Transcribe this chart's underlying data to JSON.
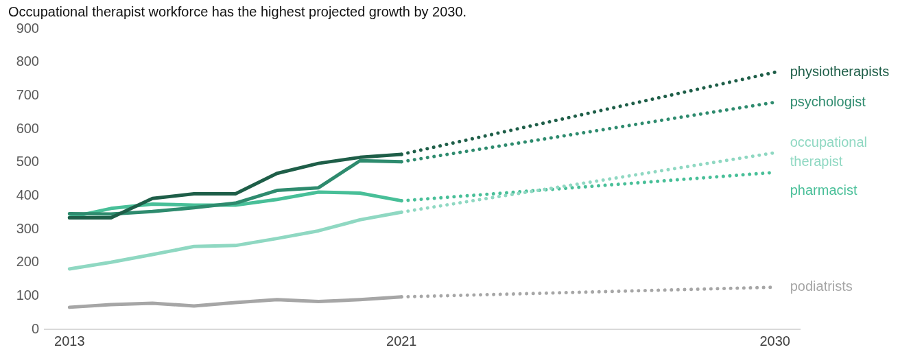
{
  "chart_data": {
    "type": "line",
    "title": "Occupational therapist workforce has the highest projected growth by 2030.",
    "xlim": [
      2012.4,
      2030.6
    ],
    "xticks": [
      2013,
      2021,
      2030
    ],
    "ylim": [
      0,
      900
    ],
    "yticks": [
      0,
      100,
      200,
      300,
      400,
      500,
      600,
      700,
      800,
      900
    ],
    "grid": false,
    "legend": false,
    "marker": "none",
    "series": [
      {
        "color": "#1e5e48",
        "line_style": "solid",
        "x": [
          2013,
          2014,
          2015,
          2016,
          2017,
          2018,
          2019,
          2020,
          2021
        ],
        "values": [
          334,
          334,
          392,
          406,
          406,
          467,
          497,
          515,
          524
        ]
      },
      {
        "color": "#2e8b6e",
        "line_style": "solid",
        "x": [
          2013,
          2014,
          2015,
          2016,
          2017,
          2018,
          2019,
          2020,
          2021
        ],
        "values": [
          346,
          345,
          353,
          364,
          378,
          416,
          424,
          505,
          502
        ]
      },
      {
        "color": "#8fd8c2",
        "line_style": "solid",
        "x": [
          2013,
          2014,
          2015,
          2016,
          2017,
          2018,
          2019,
          2020,
          2021
        ],
        "values": [
          181,
          201,
          224,
          248,
          251,
          272,
          295,
          328,
          351
        ]
      },
      {
        "color": "#48bf98",
        "line_style": "solid",
        "x": [
          2013,
          2014,
          2015,
          2016,
          2017,
          2018,
          2019,
          2020,
          2021
        ],
        "values": [
          335,
          362,
          375,
          372,
          372,
          389,
          411,
          408,
          385
        ]
      },
      {
        "color": "#a6a6a6",
        "line_style": "solid",
        "x": [
          2013,
          2014,
          2015,
          2016,
          2017,
          2018,
          2019,
          2020,
          2021
        ],
        "values": [
          66,
          74,
          78,
          70,
          80,
          89,
          83,
          89,
          97
        ]
      },
      {
        "name": "physiotherapists",
        "color": "#1e5e48",
        "line_style": "dotted",
        "x": [
          2021,
          2030
        ],
        "values": [
          524,
          770
        ]
      },
      {
        "name": "psychologist",
        "color": "#2e8b6e",
        "line_style": "dotted",
        "x": [
          2021,
          2030
        ],
        "values": [
          502,
          680
        ]
      },
      {
        "name": "occupational therapist",
        "color": "#8fd8c2",
        "line_style": "dotted",
        "x": [
          2021,
          2030
        ],
        "values": [
          351,
          529
        ]
      },
      {
        "name": "pharmacist",
        "color": "#48bf98",
        "line_style": "dotted",
        "x": [
          2021,
          2030
        ],
        "values": [
          385,
          470
        ]
      },
      {
        "name": "podiatrists",
        "color": "#a6a6a6",
        "line_style": "dotted",
        "x": [
          2021,
          2030
        ],
        "values": [
          97,
          126
        ]
      }
    ]
  }
}
